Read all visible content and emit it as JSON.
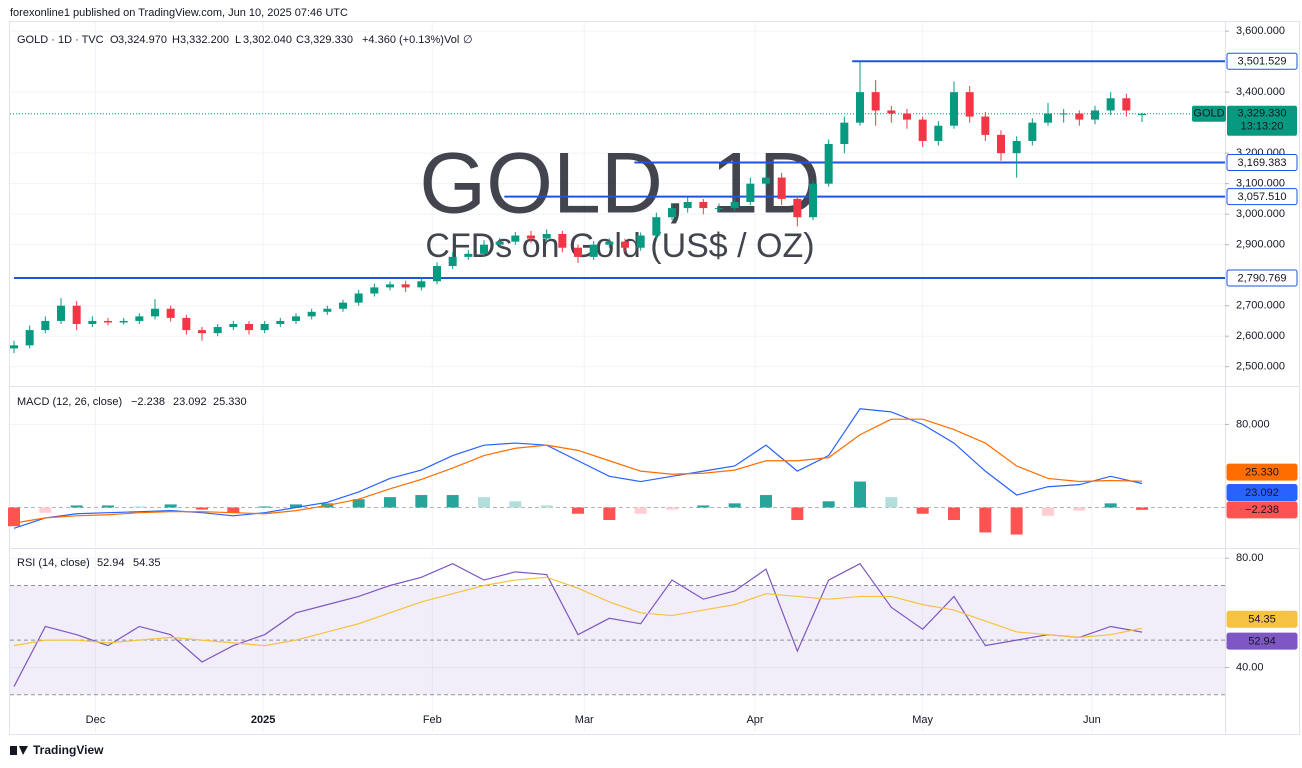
{
  "header": {
    "published": "forexonline1 published on TradingView.com, Jun 10, 2025 07:46 UTC"
  },
  "footer": {
    "brand": "TradingView"
  },
  "chart_data": [
    {
      "type": "candlestick",
      "legend": {
        "symbol": "GOLD · 1D · TVC",
        "fields": [
          {
            "key": "O",
            "value": "3,324.970"
          },
          {
            "key": "H",
            "value": "3,332.200"
          },
          {
            "key": "L",
            "value": "3,302.040"
          },
          {
            "key": "C",
            "value": "3,329.330"
          }
        ],
        "change": "+4.360 (+0.13%)",
        "volume": "Vol",
        "volume_value": "∅"
      },
      "watermark_title": "GOLD, 1D",
      "watermark_subtitle": "CFDs on Gold (US$ / OZ)",
      "up_color": "#089981",
      "down_color": "#f23645",
      "open": [
        2560,
        2570,
        2620,
        2650,
        2700,
        2640,
        2650,
        2645,
        2650,
        2665,
        2690,
        2660,
        2620,
        2610,
        2630,
        2640,
        2620,
        2640,
        2650,
        2665,
        2680,
        2690,
        2710,
        2740,
        2760,
        2770,
        2760,
        2780,
        2830,
        2860,
        2870,
        2900,
        2910,
        2930,
        2920,
        2935,
        2890,
        2860,
        2900,
        2910,
        2890,
        2930,
        2990,
        3020,
        3040,
        3020,
        3020,
        3040,
        3100,
        3120,
        3050,
        2990,
        3100,
        3230,
        3300,
        3400,
        3340,
        3330,
        3310,
        3240,
        3290,
        3400,
        3320,
        3260,
        3200,
        3240,
        3300,
        3330,
        3330,
        3310,
        3340,
        3380,
        3324.97
      ],
      "high": [
        2585,
        2635,
        2665,
        2725,
        2715,
        2665,
        2660,
        2660,
        2675,
        2722,
        2700,
        2670,
        2630,
        2640,
        2650,
        2650,
        2650,
        2660,
        2675,
        2690,
        2700,
        2720,
        2752,
        2772,
        2780,
        2782,
        2790,
        2842,
        2875,
        2882,
        2915,
        2922,
        2942,
        2945,
        2950,
        2945,
        2900,
        2912,
        2920,
        2920,
        2940,
        3005,
        3035,
        3055,
        3050,
        3035,
        3052,
        3120,
        3167,
        3135,
        3060,
        3110,
        3245,
        3320,
        3500,
        3440,
        3355,
        3345,
        3320,
        3305,
        3435,
        3420,
        3335,
        3275,
        3255,
        3315,
        3365,
        3345,
        3340,
        3355,
        3400,
        3395,
        3332.2
      ],
      "low": [
        2545,
        2560,
        2610,
        2640,
        2620,
        2630,
        2635,
        2638,
        2640,
        2655,
        2648,
        2605,
        2585,
        2600,
        2620,
        2605,
        2610,
        2630,
        2640,
        2655,
        2670,
        2680,
        2700,
        2730,
        2750,
        2745,
        2750,
        2770,
        2820,
        2850,
        2860,
        2890,
        2900,
        2905,
        2910,
        2875,
        2840,
        2850,
        2890,
        2875,
        2880,
        2920,
        2980,
        3005,
        3000,
        3005,
        3010,
        3030,
        3090,
        3030,
        2960,
        2980,
        3090,
        3200,
        3290,
        3290,
        3300,
        3280,
        3220,
        3225,
        3280,
        3300,
        3240,
        3175,
        3120,
        3225,
        3290,
        3300,
        3290,
        3295,
        3325,
        3320,
        3302.04
      ],
      "close": [
        2570,
        2620,
        2650,
        2700,
        2640,
        2650,
        2645,
        2650,
        2665,
        2690,
        2660,
        2620,
        2610,
        2630,
        2640,
        2620,
        2640,
        2650,
        2665,
        2680,
        2690,
        2710,
        2740,
        2760,
        2770,
        2760,
        2780,
        2830,
        2860,
        2870,
        2900,
        2910,
        2930,
        2920,
        2935,
        2890,
        2860,
        2900,
        2910,
        2890,
        2930,
        2990,
        3020,
        3040,
        3020,
        3020,
        3040,
        3100,
        3120,
        3050,
        2990,
        3100,
        3230,
        3300,
        3400,
        3340,
        3330,
        3310,
        3240,
        3290,
        3400,
        3320,
        3260,
        3200,
        3240,
        3300,
        3330,
        3330,
        3310,
        3340,
        3380,
        3340,
        3329.33
      ],
      "ylim": [
        2440,
        3630
      ],
      "yticks": [
        {
          "value": 2500,
          "label": "2,500.000"
        },
        {
          "value": 2600,
          "label": "2,600.000"
        },
        {
          "value": 2700,
          "label": "2,700.000"
        },
        {
          "value": 2900,
          "label": "2,900.000"
        },
        {
          "value": 3000,
          "label": "3,000.000"
        },
        {
          "value": 3100,
          "label": "3,100.000"
        },
        {
          "value": 3200,
          "label": "3,200.000"
        },
        {
          "value": 3400,
          "label": "3,400.000"
        },
        {
          "value": 3600,
          "label": "3,600.000"
        }
      ],
      "xticks": [
        {
          "value": 5.2,
          "label": "Dec"
        },
        {
          "value": 15.9,
          "label": "2025"
        },
        {
          "value": 26.7,
          "label": "Feb"
        },
        {
          "value": 36.4,
          "label": "Mar"
        },
        {
          "value": 47.3,
          "label": "Apr"
        },
        {
          "value": 58.0,
          "label": "May"
        },
        {
          "value": 68.8,
          "label": "Jun"
        }
      ],
      "grid": true,
      "level_color": "#1e53e5",
      "levels": [
        {
          "value": 3501.529,
          "label": "3,501.529",
          "from": 53.5
        },
        {
          "value": 3169.383,
          "label": "3,169.383",
          "from": 39.6
        },
        {
          "value": 3057.51,
          "label": "3,057.510",
          "from": 31.3
        },
        {
          "value": 2790.769,
          "label": "2,790.769",
          "from": 0
        }
      ],
      "last_price": {
        "name": "GOLD",
        "value": 3329.33,
        "label": "3,329.330",
        "countdown": "13:13:20"
      }
    },
    {
      "type": "macd",
      "title": "MACD (12, 26, close)",
      "ylim": [
        -38,
        115
      ],
      "yticks": [
        {
          "value": 80,
          "label": "80.000"
        }
      ],
      "hlines": [
        0
      ],
      "histogram": {
        "positive_color": "#26a69a",
        "positive_fading_color": "#b2dfdb",
        "negative_color": "#ff5252",
        "negative_fading_color": "#ffcdd2",
        "values": [
          -18,
          -5,
          2,
          2,
          1,
          3,
          -2,
          -5,
          1,
          3,
          4,
          8,
          10,
          12,
          12,
          10,
          6,
          2,
          -6,
          -12,
          -6,
          -2,
          2,
          4,
          12,
          -12,
          6,
          25,
          10,
          -6,
          -12,
          -24,
          -26,
          -8,
          -3,
          4,
          -2.238
        ],
        "last_label": "−2.238"
      },
      "series": [
        {
          "color": "#2962ff",
          "values": [
            -20,
            -10,
            -6,
            -5,
            -4,
            -3,
            -5,
            -8,
            -5,
            0,
            5,
            15,
            28,
            36,
            50,
            60,
            62,
            60,
            45,
            30,
            25,
            30,
            35,
            40,
            60,
            35,
            50,
            95,
            92,
            80,
            62,
            35,
            12,
            20,
            22,
            30,
            23.092
          ],
          "last_label": "23.092"
        },
        {
          "color": "#ff6d00",
          "values": [
            -15,
            -10,
            -8,
            -7,
            -5,
            -4,
            -4,
            -5,
            -6,
            -3,
            2,
            8,
            18,
            27,
            38,
            50,
            57,
            60,
            55,
            45,
            35,
            32,
            33,
            36,
            45,
            45,
            48,
            70,
            85,
            85,
            75,
            62,
            40,
            28,
            25,
            26,
            25.33
          ],
          "last_label": "25.330"
        }
      ]
    },
    {
      "type": "rsi",
      "title": "RSI (14, close)",
      "ylim": [
        16,
        83
      ],
      "yticks": [
        {
          "value": 40,
          "label": "40.00"
        },
        {
          "value": 80,
          "label": "80.00"
        }
      ],
      "hlines": [
        70,
        50,
        30
      ],
      "band_color": "#7e57c2",
      "series": [
        {
          "color": "#7e57c2",
          "values": [
            33,
            55,
            52,
            48,
            55,
            52,
            42,
            48,
            52,
            60,
            63,
            66,
            70,
            73,
            78,
            72,
            75,
            74,
            52,
            58,
            56,
            72,
            65,
            68,
            76,
            46,
            72,
            78,
            62,
            54,
            66,
            48,
            50,
            52,
            51,
            55,
            52.94
          ]
        },
        {
          "color": "#f5c242",
          "values": [
            48,
            50,
            50,
            49,
            50,
            51,
            50,
            49,
            48,
            50,
            53,
            56,
            60,
            64,
            67,
            70,
            72,
            73,
            69,
            64,
            60,
            59,
            61,
            63,
            67,
            66,
            65,
            66,
            66,
            63,
            61,
            57,
            53,
            52,
            51,
            52,
            54.35
          ]
        }
      ]
    }
  ]
}
